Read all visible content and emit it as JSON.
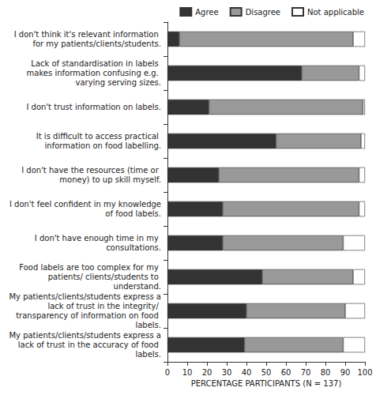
{
  "chart_data": {
    "type": "bar",
    "orientation": "horizontal",
    "stacked": true,
    "categories": [
      "I don't think it's relevant information for my patients/clients/students.",
      "Lack of standardisation in labels makes information confusing e.g. varying serving sizes.",
      "I don't trust information on labels.",
      "It is difficult to access practical information on food labelling.",
      "I don't have the resources (time or money) to up skill myself.",
      "I don't feel confident in my knowledge of food labels.",
      "I don't have enough time in my consultations.",
      "Food labels are too complex for my patients/ clients/students to understand.",
      "My patients/clients/students express a lack of trust in the integrity/ transparency of information on food labels.",
      "My patients/clients/students express a lack of trust in the accuracy of food labels."
    ],
    "series": [
      {
        "name": "Agree",
        "color": "#333333",
        "values": [
          6,
          68,
          21,
          55,
          26,
          28,
          28,
          48,
          40,
          39
        ]
      },
      {
        "name": "Disagree",
        "color": "#999999",
        "values": [
          88,
          29,
          78,
          43,
          71,
          69,
          61,
          46,
          50,
          50
        ]
      },
      {
        "name": "Not applicable",
        "color": "#ffffff",
        "values": [
          6,
          3,
          1,
          2,
          3,
          3,
          11,
          6,
          10,
          11
        ]
      }
    ],
    "x_label": "PERCENTAGE PARTICIPANTS (N = 137)",
    "xlim": [
      0,
      100
    ],
    "xticks": [
      0,
      10,
      20,
      30,
      40,
      50,
      60,
      70,
      80,
      90,
      100
    ],
    "grid": false,
    "legend": "top"
  }
}
